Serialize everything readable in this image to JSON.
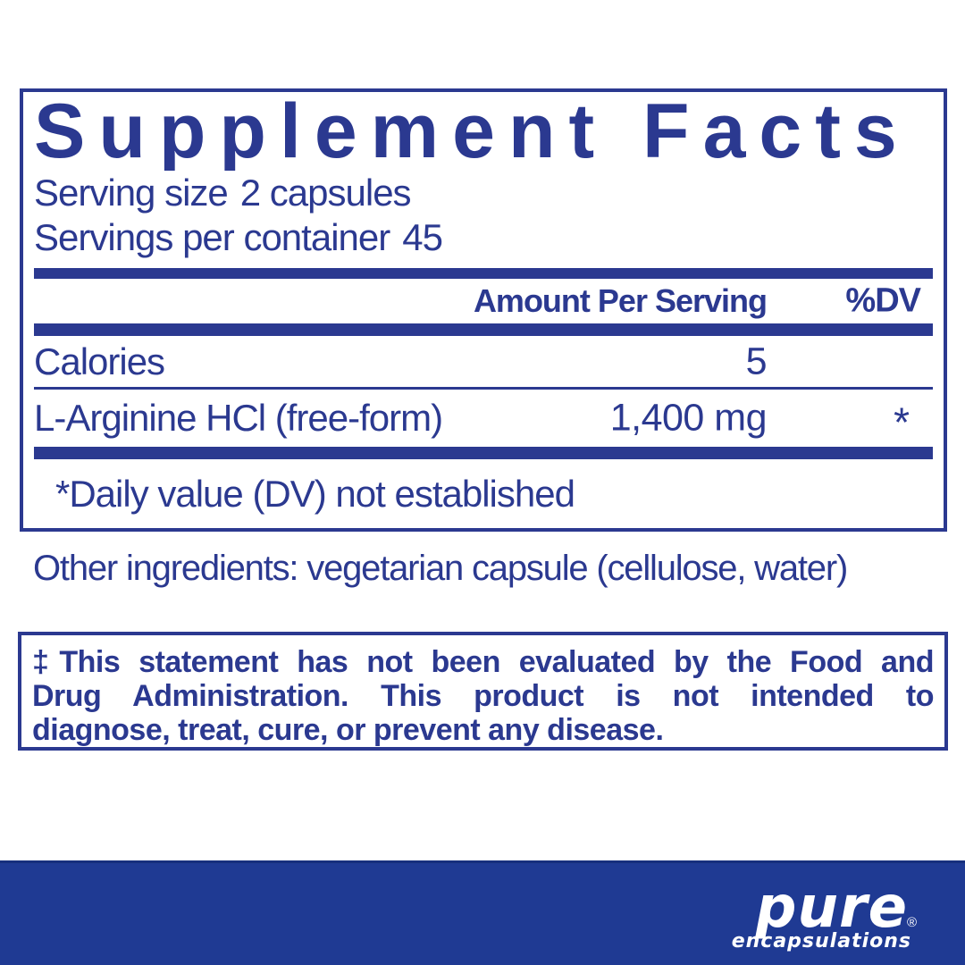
{
  "colors": {
    "navy": "#2b3990",
    "band_blue": "#1f3a93"
  },
  "supplement_facts": {
    "title": "Supplement Facts",
    "serving_size": {
      "label": "Serving size",
      "value": "2 capsules"
    },
    "servings_per_container": {
      "label": "Servings per container",
      "value": "45"
    },
    "columns": {
      "amount": "Amount Per Serving",
      "dv": "%DV"
    },
    "rows": [
      {
        "name": "Calories",
        "amount": "5",
        "dv": ""
      },
      {
        "name": "L-Arginine HCl (free-form)",
        "amount": "1,400 mg",
        "dv": "*"
      }
    ],
    "footnote": "*Daily value (DV) not established"
  },
  "other_ingredients": "Other ingredients: vegetarian capsule (cellulose, water)",
  "disclaimer": {
    "lines": [
      "‡This statement has not been evaluated by the Food and",
      "Drug Administration. This product is not intended to",
      "diagnose, treat, cure, or prevent any disease."
    ]
  },
  "brand": {
    "name": "pure",
    "subtitle": "encapsulations",
    "registered": "®"
  }
}
